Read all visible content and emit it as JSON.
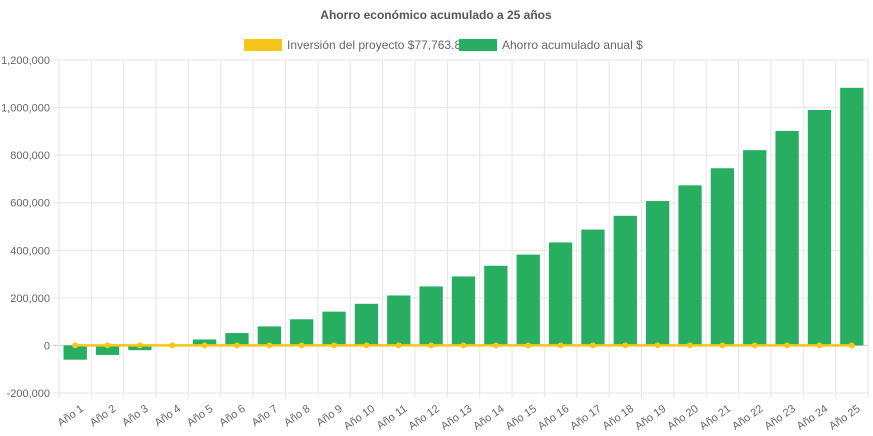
{
  "chart_data": {
    "type": "bar",
    "title": "Ahorro económico acumulado a 25 años",
    "legend_position": "top",
    "grid": true,
    "categories": [
      "Año 1",
      "Año 2",
      "Año 3",
      "Año 4",
      "Año 5",
      "Año 6",
      "Año 7",
      "Año 8",
      "Año 9",
      "Año 10",
      "Año 11",
      "Año 12",
      "Año 13",
      "Año 14",
      "Año 15",
      "Año 16",
      "Año 17",
      "Año 18",
      "Año 19",
      "Año 20",
      "Año 21",
      "Año 22",
      "Año 23",
      "Año 24",
      "Año 25"
    ],
    "ylim": [
      -200000,
      1200000
    ],
    "yticks": [
      "1,200,000",
      "1,000,000",
      "800,000",
      "600,000",
      "400,000",
      "200,000",
      "0",
      "-200,000"
    ],
    "ytick_values": [
      1200000,
      1000000,
      800000,
      600000,
      400000,
      200000,
      0,
      -200000
    ],
    "series": [
      {
        "name": "Inversión del proyecto $77,763.80",
        "type": "line",
        "color": "#f5c518",
        "values": [
          0,
          0,
          0,
          0,
          0,
          0,
          0,
          0,
          0,
          0,
          0,
          0,
          0,
          0,
          0,
          0,
          0,
          0,
          0,
          0,
          0,
          0,
          0,
          0,
          0
        ]
      },
      {
        "name": "Ahorro acumulado anual $",
        "type": "bar",
        "color": "#27ae60",
        "values": [
          -60000,
          -40000,
          -20000,
          0,
          25000,
          52000,
          80000,
          110000,
          142000,
          175000,
          210000,
          248000,
          290000,
          335000,
          382000,
          433000,
          487000,
          545000,
          607000,
          673000,
          745000,
          821000,
          902000,
          990000,
          1083000
        ]
      }
    ]
  }
}
